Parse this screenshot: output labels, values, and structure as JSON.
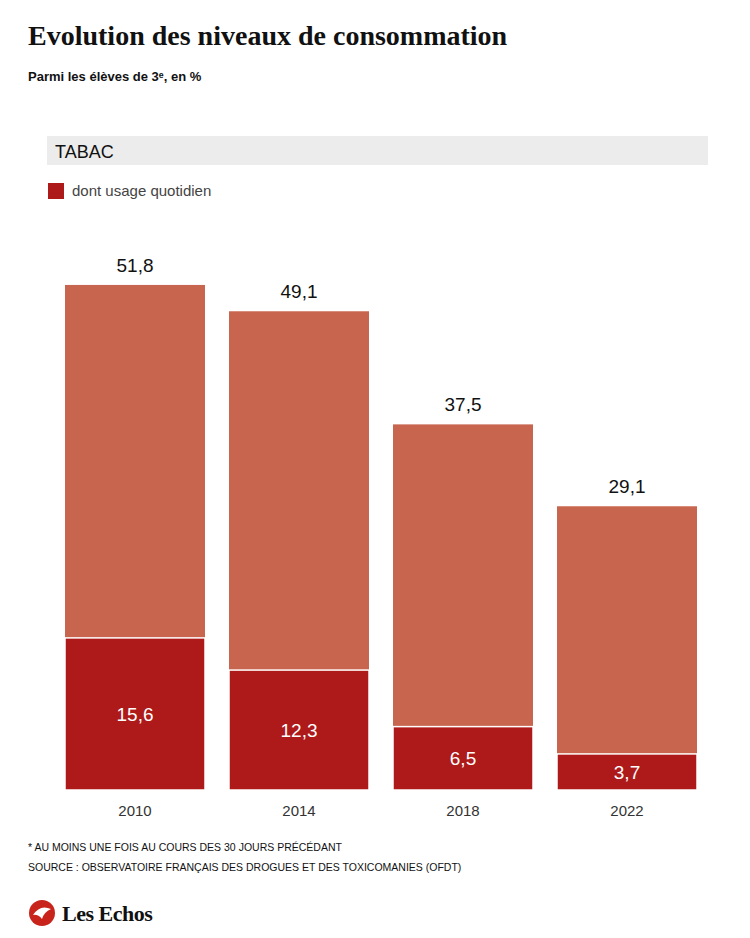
{
  "chart_data": {
    "type": "bar",
    "title": "Evolution des niveaux de consommation",
    "subtitle": "Parmi les élèves de 3ᵉ, en %",
    "categories": [
      "2010",
      "2014",
      "2018",
      "2022"
    ],
    "series": [
      {
        "name": "TABAC",
        "color": "#c8654e",
        "values": [
          51.8,
          49.1,
          37.5,
          29.1
        ],
        "value_labels": [
          "51,8",
          "49,1",
          "37,5",
          "29,1"
        ]
      },
      {
        "name": "dont usage quotidien",
        "color": "#ae1919",
        "values": [
          15.6,
          12.3,
          6.5,
          3.7
        ],
        "value_labels": [
          "15,6",
          "12,3",
          "6,5",
          "3,7"
        ]
      }
    ],
    "ylim": [
      0,
      60
    ],
    "stacked": false,
    "data_labels": true,
    "tick_labels": "x",
    "legend": "top-left",
    "annotations": [
      "* AU MOINS UNE FOIS AU COURS DES 30 JOURS PRÉCÉDANT",
      "SOURCE : OBSERVATOIRE FRANÇAIS DES DROGUES ET DES TOXICOMANIES (OFDT)",
      "Les Echos"
    ]
  }
}
